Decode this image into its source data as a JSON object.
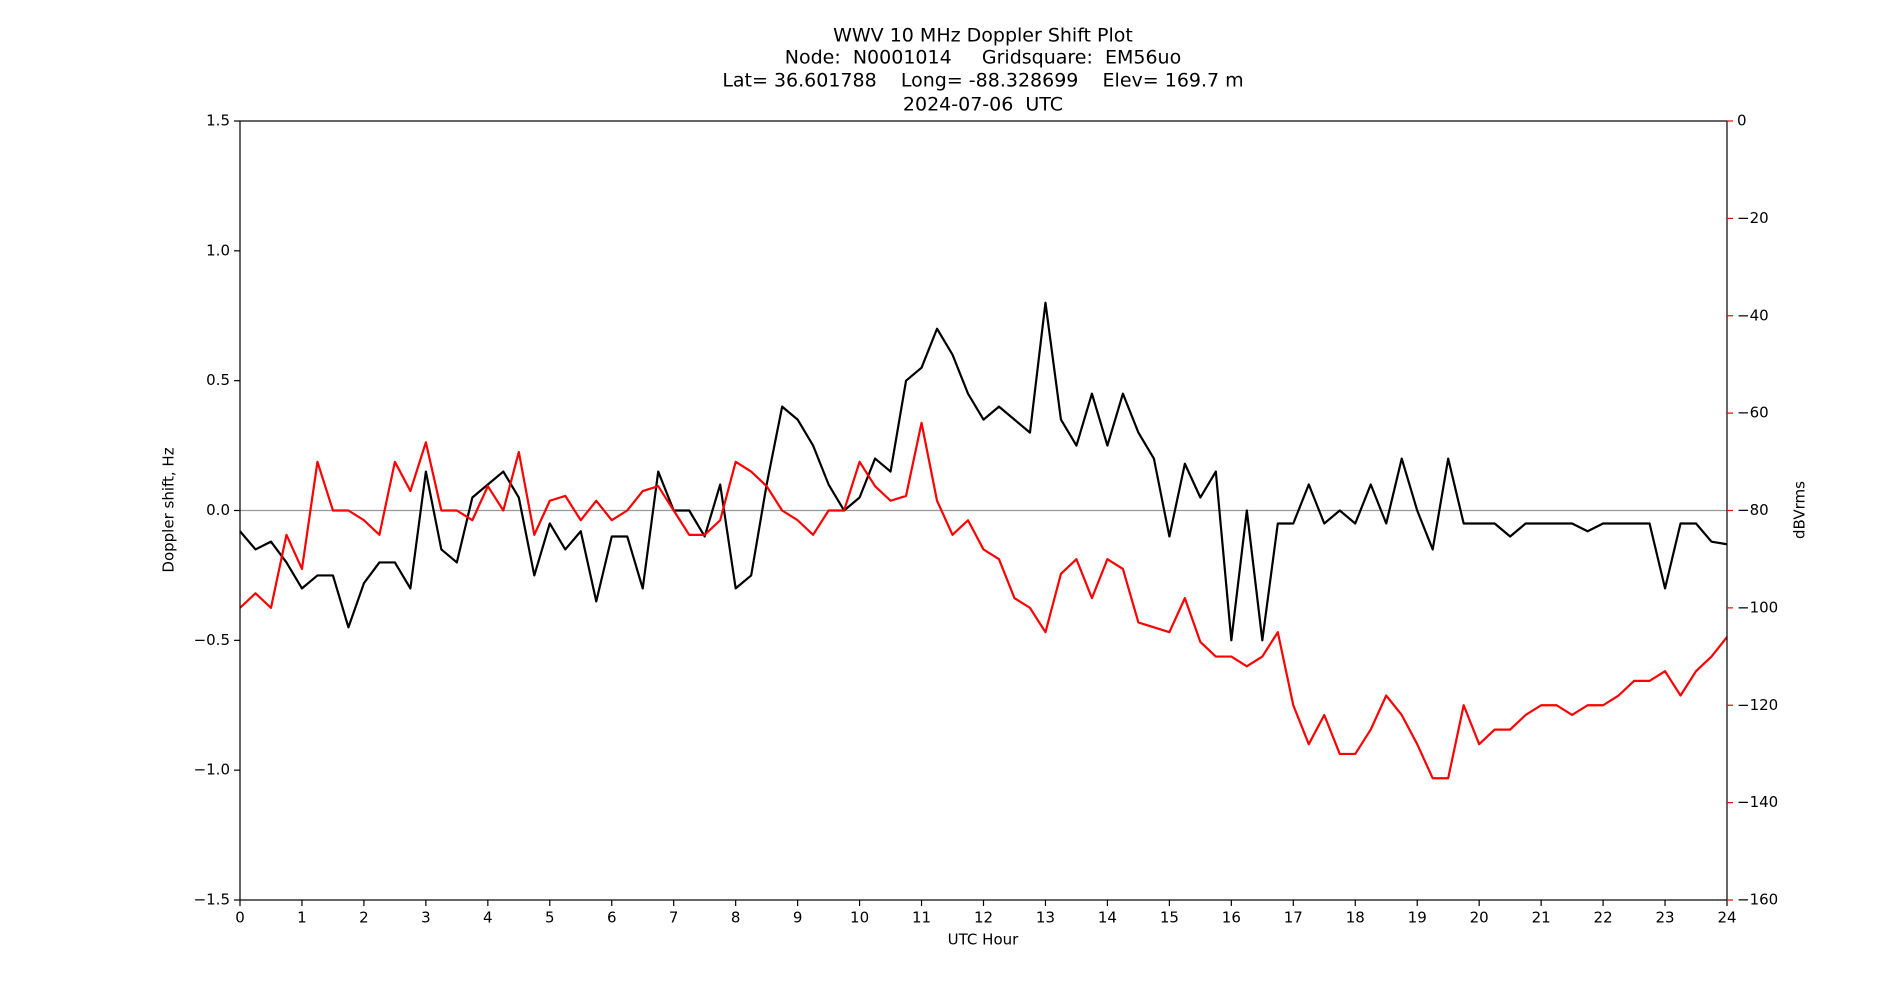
{
  "chart_data": {
    "type": "line",
    "title_lines": [
      "WWV 10 MHz Doppler Shift Plot",
      "Node:  N0001014     Gridsquare:  EM56uo",
      "Lat= 36.601788    Long= -88.328699    Elev= 169.7 m",
      "2024-07-06  UTC"
    ],
    "xlabel": "UTC Hour",
    "ylabel": "Doppler shift, Hz",
    "y2label": "dBVrms",
    "y2color": "#ff0000",
    "x": [
      0,
      0.25,
      0.5,
      0.75,
      1,
      1.25,
      1.5,
      1.75,
      2,
      2.25,
      2.5,
      2.75,
      3,
      3.25,
      3.5,
      3.75,
      4,
      4.25,
      4.5,
      4.75,
      5,
      5.25,
      5.5,
      5.75,
      6,
      6.25,
      6.5,
      6.75,
      7,
      7.25,
      7.5,
      7.75,
      8,
      8.25,
      8.5,
      8.75,
      9,
      9.25,
      9.5,
      9.75,
      10,
      10.25,
      10.5,
      10.75,
      11,
      11.25,
      11.5,
      11.75,
      12,
      12.25,
      12.5,
      12.75,
      13,
      13.25,
      13.5,
      13.75,
      14,
      14.25,
      14.5,
      14.75,
      15,
      15.25,
      15.5,
      15.75,
      16,
      16.25,
      16.5,
      16.75,
      17,
      17.25,
      17.5,
      17.75,
      18,
      18.25,
      18.5,
      18.75,
      19,
      19.25,
      19.5,
      19.75,
      20,
      20.25,
      20.5,
      20.75,
      21,
      21.25,
      21.5,
      21.75,
      22,
      22.25,
      22.5,
      22.75,
      23,
      23.25,
      23.5,
      23.75,
      24
    ],
    "series": [
      {
        "color": "#000000",
        "values": [
          -0.08,
          -0.15,
          -0.12,
          -0.2,
          -0.3,
          -0.25,
          -0.25,
          -0.45,
          -0.28,
          -0.2,
          -0.2,
          -0.3,
          0.15,
          -0.15,
          -0.2,
          0.05,
          0.1,
          0.15,
          0.05,
          -0.25,
          -0.05,
          -0.15,
          -0.08,
          -0.35,
          -0.1,
          -0.1,
          -0.3,
          0.15,
          0,
          0,
          -0.1,
          0.1,
          -0.3,
          -0.25,
          0.1,
          0.4,
          0.35,
          0.25,
          0.1,
          0,
          0.05,
          0.2,
          0.15,
          0.5,
          0.55,
          0.7,
          0.6,
          0.45,
          0.35,
          0.4,
          0.35,
          0.3,
          0.8,
          0.35,
          0.25,
          0.45,
          0.25,
          0.45,
          0.3,
          0.2,
          -0.1,
          0.18,
          0.05,
          0.15,
          -0.5,
          0,
          -0.5,
          -0.05,
          -0.05,
          0.1,
          -0.05,
          0,
          -0.05,
          0.1,
          -0.05,
          0.2,
          0,
          -0.15,
          0.2,
          -0.05,
          -0.05,
          -0.05,
          -0.1,
          -0.05,
          -0.05,
          -0.05,
          -0.05,
          -0.08,
          -0.05,
          -0.05,
          -0.05,
          -0.05,
          -0.3,
          -0.05,
          -0.05,
          -0.12,
          -0.13
        ]
      },
      {
        "color": "#ff0000",
        "axis": "y2",
        "values": [
          -100,
          -97,
          -100,
          -85,
          -92,
          -70,
          -80,
          -80,
          -82,
          -85,
          -70,
          -76,
          -66,
          -80,
          -80,
          -82,
          -75,
          -80,
          -68,
          -85,
          -78,
          -77,
          -82,
          -78,
          -82,
          -80,
          -76,
          -75,
          -80,
          -85,
          -85,
          -82,
          -70,
          -72,
          -75,
          -80,
          -82,
          -85,
          -80,
          -80,
          -70,
          -75,
          -78,
          -77,
          -62,
          -78,
          -85,
          -82,
          -88,
          -90,
          -98,
          -100,
          -105,
          -93,
          -90,
          -98,
          -90,
          -92,
          -103,
          -104,
          -105,
          -98,
          -107,
          -110,
          -110,
          -112,
          -110,
          -105,
          -120,
          -128,
          -122,
          -130,
          -130,
          -125,
          -118,
          -122,
          -128,
          -135,
          -135,
          -120,
          -128,
          -125,
          -125,
          -122,
          -120,
          -120,
          -122,
          -120,
          -120,
          -118,
          -115,
          -115,
          -113,
          -118,
          -113,
          -110,
          -106
        ]
      }
    ],
    "zero_line": true,
    "xlim": [
      0,
      24
    ],
    "xticks": [
      0,
      1,
      2,
      3,
      4,
      5,
      6,
      7,
      8,
      9,
      10,
      11,
      12,
      13,
      14,
      15,
      16,
      17,
      18,
      19,
      20,
      21,
      22,
      23,
      24
    ],
    "ylim": [
      -1.5,
      1.5
    ],
    "yticks": [
      {
        "value": -1.5,
        "label": "−1.5"
      },
      {
        "value": -1,
        "label": "−1.0"
      },
      {
        "value": -0.5,
        "label": "−0.5"
      },
      {
        "value": 0,
        "label": "0.0"
      },
      {
        "value": 0.5,
        "label": "0.5"
      },
      {
        "value": 1,
        "label": "1.0"
      },
      {
        "value": 1.5,
        "label": "1.5"
      }
    ],
    "y2lim": [
      -160,
      0
    ],
    "y2ticks": [
      {
        "value": -160,
        "label": "−160"
      },
      {
        "value": -140,
        "label": "−140"
      },
      {
        "value": -120,
        "label": "−120"
      },
      {
        "value": -100,
        "label": "−100"
      },
      {
        "value": -80,
        "label": "−80"
      },
      {
        "value": -60,
        "label": "−60"
      },
      {
        "value": -40,
        "label": "−40"
      },
      {
        "value": -20,
        "label": "−20"
      },
      0
    ]
  }
}
